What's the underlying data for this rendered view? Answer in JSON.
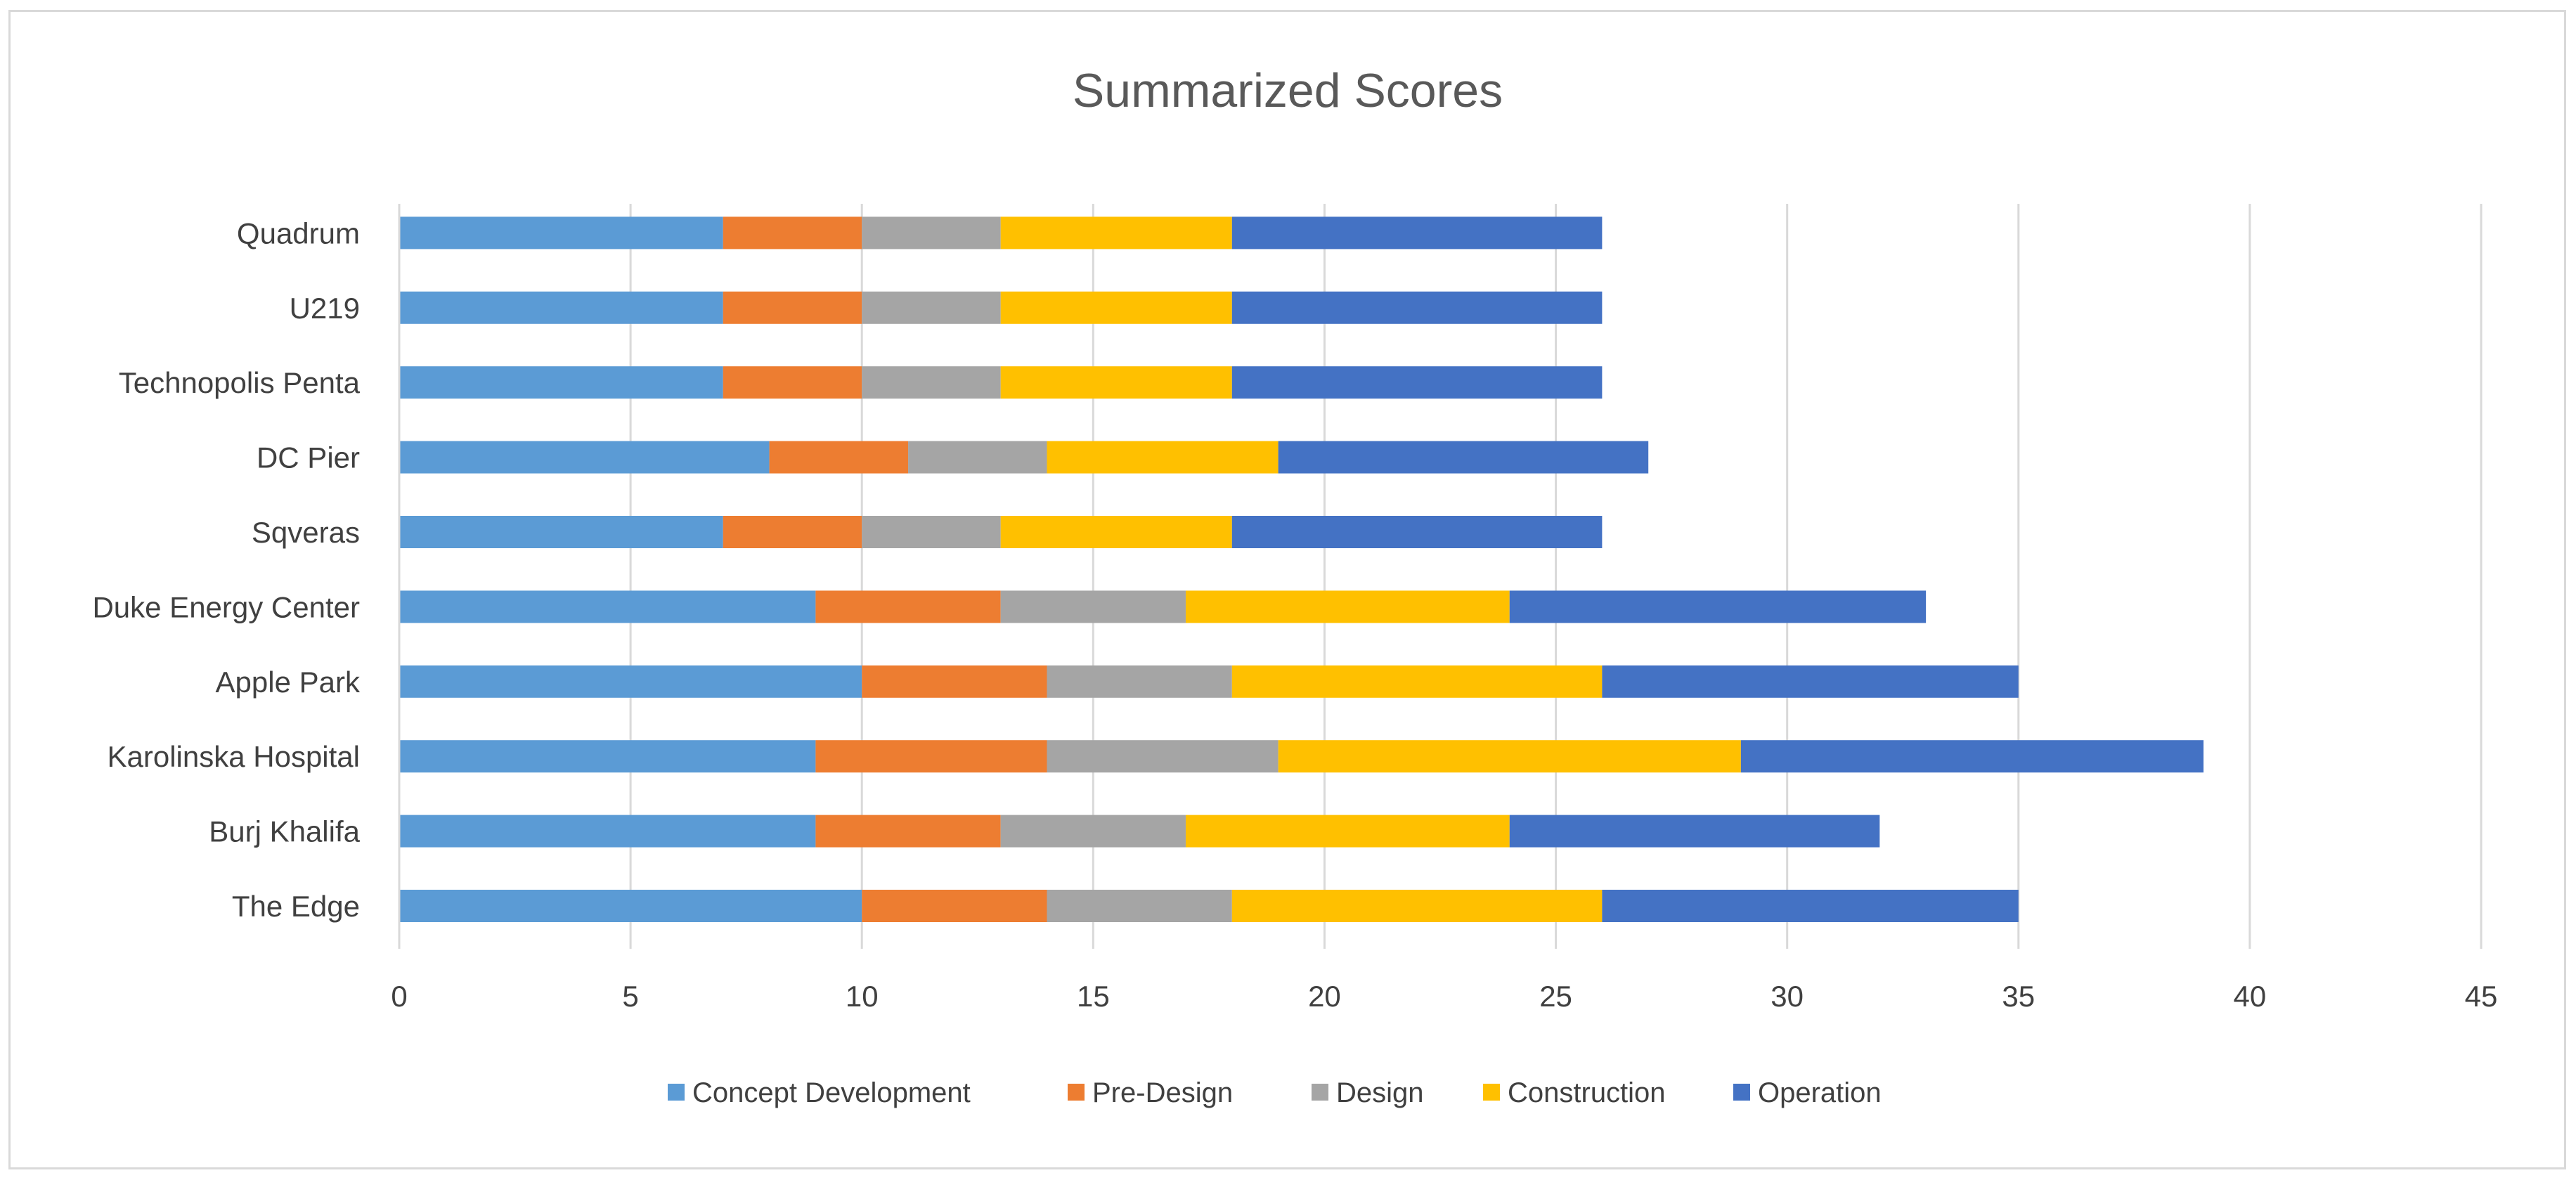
{
  "chart_data": {
    "type": "bar",
    "orientation": "horizontal",
    "stacked": true,
    "title": "Summarized Scores",
    "xlabel": "",
    "ylabel": "",
    "xlim": [
      0,
      45
    ],
    "xticks": [
      0,
      5,
      10,
      15,
      20,
      25,
      30,
      35,
      40,
      45
    ],
    "grid": "vertical",
    "legend_position": "bottom",
    "categories": [
      "The Edge",
      "Burj Khalifa",
      "Karolinska Hospital",
      "Apple Park",
      "Duke Energy Center",
      "Sqveras",
      "DC Pier",
      "Technopolis Penta",
      "U219",
      "Quadrum"
    ],
    "series": [
      {
        "name": "Concept Development",
        "color": "#5b9bd5",
        "values": [
          10,
          9,
          9,
          10,
          9,
          7,
          8,
          7,
          7,
          7
        ]
      },
      {
        "name": "Pre-Design",
        "color": "#ed7d31",
        "values": [
          4,
          4,
          5,
          4,
          4,
          3,
          3,
          3,
          3,
          3
        ]
      },
      {
        "name": "Design",
        "color": "#a5a5a5",
        "values": [
          4,
          4,
          5,
          4,
          4,
          3,
          3,
          3,
          3,
          3
        ]
      },
      {
        "name": "Construction",
        "color": "#ffc000",
        "values": [
          8,
          7,
          10,
          8,
          7,
          5,
          5,
          5,
          5,
          5
        ]
      },
      {
        "name": "Operation",
        "color": "#4472c4",
        "values": [
          9,
          8,
          10,
          9,
          9,
          8,
          8,
          8,
          8,
          8
        ]
      }
    ]
  }
}
